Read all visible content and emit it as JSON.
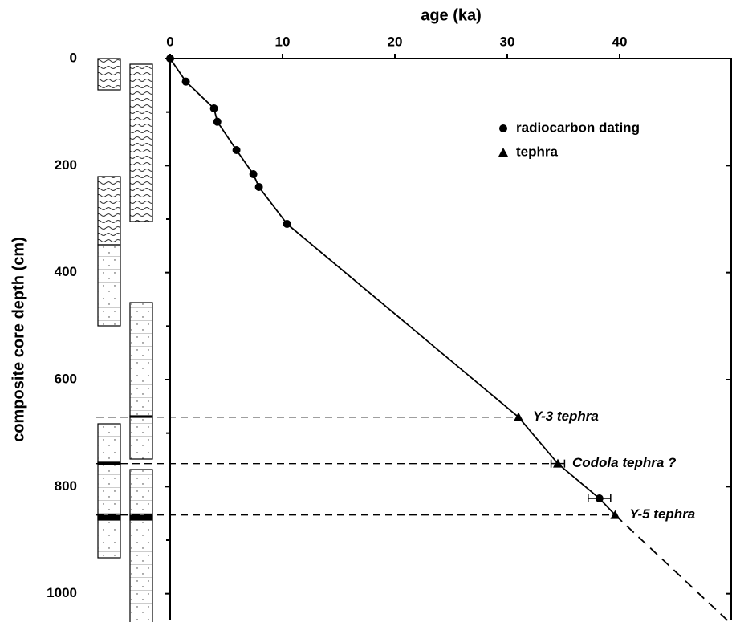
{
  "chart_data": {
    "type": "scatter",
    "x_label": "age (ka)",
    "y_label": "composite core depth (cm)",
    "xlim": [
      0,
      50
    ],
    "xticks": [
      0,
      10,
      20,
      30,
      40
    ],
    "ylim": [
      0,
      1050
    ],
    "yticks": [
      0,
      200,
      400,
      600,
      800,
      1000
    ],
    "yminorticks": [
      100,
      300,
      500,
      700,
      900
    ],
    "y_inverted": true,
    "x_axis_top": true,
    "legend": "upper right",
    "series": [
      {
        "name": "radiocarbon dating",
        "marker": "circle",
        "color": "#000000",
        "x": [
          0,
          1.4,
          3.9,
          4.2,
          5.9,
          7.4,
          7.9,
          10.4,
          38.2
        ],
        "y": [
          0,
          43,
          93,
          118,
          171,
          216,
          240,
          309,
          822
        ],
        "xerr": [
          null,
          null,
          null,
          null,
          null,
          null,
          null,
          null,
          1.0
        ]
      },
      {
        "name": "tephra",
        "marker": "triangle",
        "color": "#000000",
        "x": [
          31.0,
          34.5,
          39.6
        ],
        "y": [
          670,
          757,
          853
        ],
        "xerr": [
          null,
          0.6,
          null
        ],
        "point_labels": [
          "Y-3 tephra",
          "Codola tephra ?",
          "Y-5 tephra"
        ]
      }
    ],
    "age_model": {
      "x": [
        0,
        1.4,
        3.9,
        4.2,
        5.9,
        7.4,
        7.9,
        10.4,
        31.0,
        34.5,
        38.2,
        39.6
      ],
      "y": [
        0,
        43,
        93,
        118,
        171,
        216,
        240,
        309,
        670,
        757,
        822,
        853
      ]
    },
    "extrapolation": {
      "x": [
        39.6,
        49.6
      ],
      "y": [
        853,
        1050
      ]
    }
  }
}
